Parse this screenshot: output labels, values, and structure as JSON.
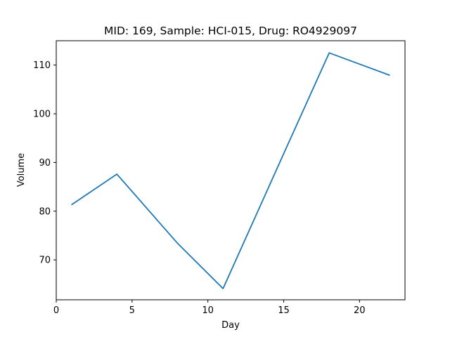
{
  "chart_data": {
    "type": "line",
    "title": "MID: 169, Sample: HCI-015, Drug: RO4929097",
    "xlabel": "Day",
    "ylabel": "Volume",
    "xlim": [
      0,
      23
    ],
    "ylim": [
      61.8,
      115
    ],
    "xticks": [
      0,
      5,
      10,
      15,
      20
    ],
    "yticks": [
      70,
      80,
      90,
      100,
      110
    ],
    "grid": false,
    "series": [
      {
        "color": "#1f77b4",
        "x": [
          1,
          4,
          8,
          11,
          15,
          18,
          22
        ],
        "y": [
          81.3,
          87.6,
          73.4,
          64.1,
          91.8,
          112.5,
          107.9
        ]
      }
    ]
  }
}
